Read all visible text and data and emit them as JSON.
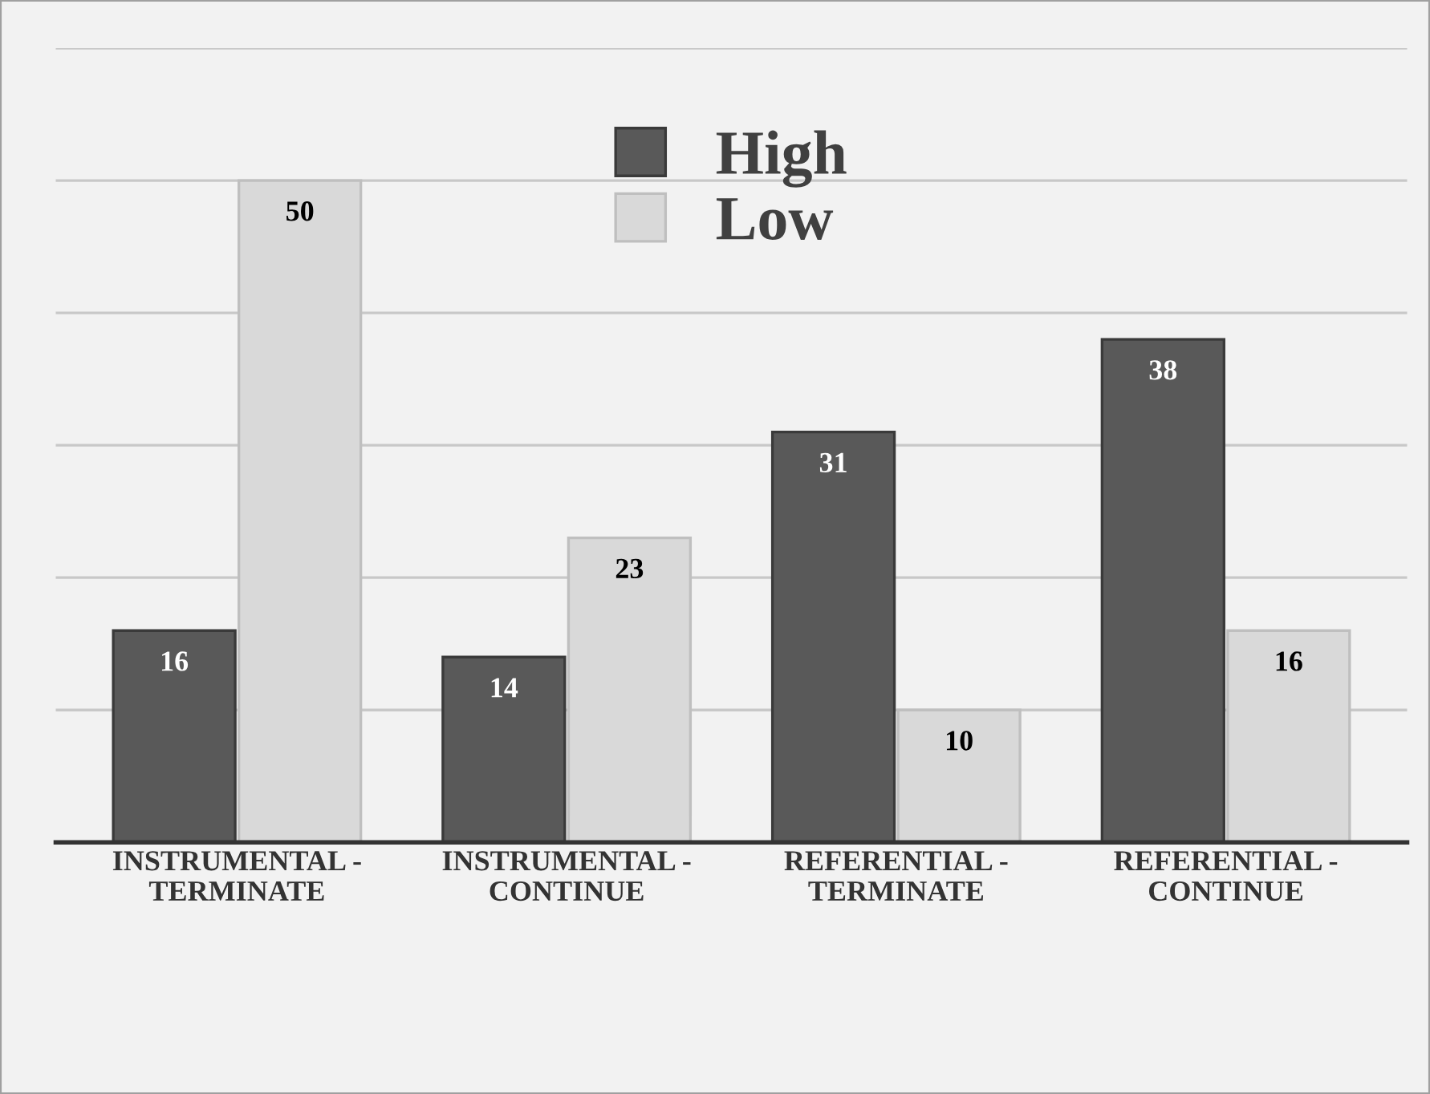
{
  "chart_data": {
    "type": "bar",
    "categories": [
      "INSTRUMENTAL -\nTERMINATE",
      "INSTRUMENTAL -\nCONTINUE",
      "REFERENTIAL -\nTERMINATE",
      "REFERENTIAL -\nCONTINUE"
    ],
    "series": [
      {
        "name": "High",
        "color": "#595959",
        "values": [
          16,
          14,
          31,
          38
        ]
      },
      {
        "name": "Low",
        "color": "#d9d9d9",
        "values": [
          50,
          23,
          10,
          16
        ]
      }
    ],
    "ylim": [
      0,
      60
    ],
    "yticks": [
      {
        "value": 0,
        "label": null
      },
      {
        "value": 10,
        "label": null
      },
      {
        "value": 20,
        "label": null
      },
      {
        "value": 30,
        "label": null
      },
      {
        "value": 40,
        "label": null
      },
      {
        "value": 50,
        "label": null
      },
      {
        "value": 60,
        "label": null
      }
    ],
    "tick_labels": "x",
    "grid": "y",
    "legend": "top",
    "data_labels": true
  }
}
